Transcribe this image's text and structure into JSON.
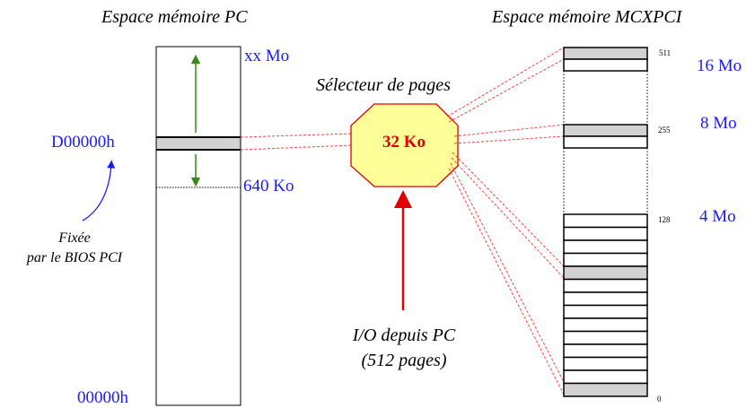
{
  "pc_space": {
    "title": "Espace mémoire PC",
    "label_top": "xx Mo",
    "label_640": "640 Ko",
    "label_d0000": "D00000h",
    "label_zero": "00000h",
    "note_line1": "Fixée",
    "note_line2": "par le BIOS PCI"
  },
  "selector": {
    "title": "Sélecteur de pages",
    "window_size": "32 Ko",
    "io_line1": "I/O depuis PC",
    "io_line2": "(512 pages)"
  },
  "mcx_space": {
    "title": "Espace mémoire MCXPCI",
    "page_511": "511",
    "page_255": "255",
    "page_128": "128",
    "page_0": "0",
    "size_16": "16 Mo",
    "size_8": "8 Mo",
    "size_4": "4 Mo"
  },
  "colors": {
    "blue": "#1a1aff",
    "red": "#e00000",
    "red_dashed": "#ff4040",
    "octagon_fill": "#ffff9a",
    "green": "#3a8a1a",
    "grey": "#d2d2d2"
  }
}
